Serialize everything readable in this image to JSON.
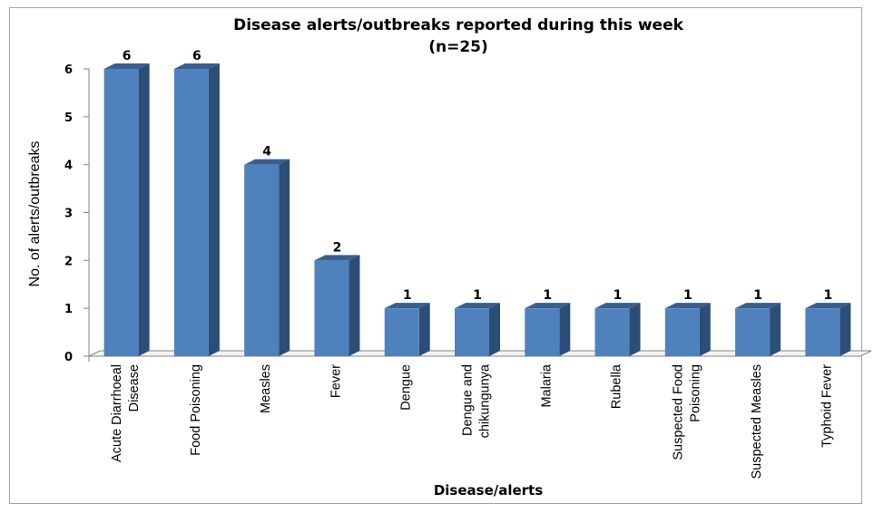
{
  "chart_data": {
    "type": "bar",
    "title": "Disease alerts/outbreaks reported during this week",
    "subtitle": "(n=25)",
    "xlabel": "Disease/alerts",
    "ylabel": "No. of alerts/outbreaks",
    "ylim": [
      0,
      6
    ],
    "yticks": [
      "0",
      "1",
      "2",
      "3",
      "4",
      "5",
      "6"
    ],
    "grid": false,
    "legend": "none",
    "categories": [
      [
        "Acute Diarrhoeal",
        "Disease"
      ],
      [
        "Food Poisoning"
      ],
      [
        "Measles"
      ],
      [
        "Fever"
      ],
      [
        "Dengue"
      ],
      [
        "Dengue and",
        "chikungunya"
      ],
      [
        "Malaria"
      ],
      [
        "Rubella"
      ],
      [
        "Suspected Food",
        "Poisoning"
      ],
      [
        "Suspected Measles"
      ],
      [
        "Typhoid Fever"
      ]
    ],
    "values": [
      6,
      6,
      4,
      2,
      1,
      1,
      1,
      1,
      1,
      1,
      1
    ],
    "data_labels": [
      "6",
      "6",
      "4",
      "2",
      "1",
      "1",
      "1",
      "1",
      "1",
      "1",
      "1"
    ],
    "colors": {
      "bar_front": "#4f81bd",
      "bar_side": "#2c4d75",
      "bar_top": "#3a5f8f"
    }
  }
}
